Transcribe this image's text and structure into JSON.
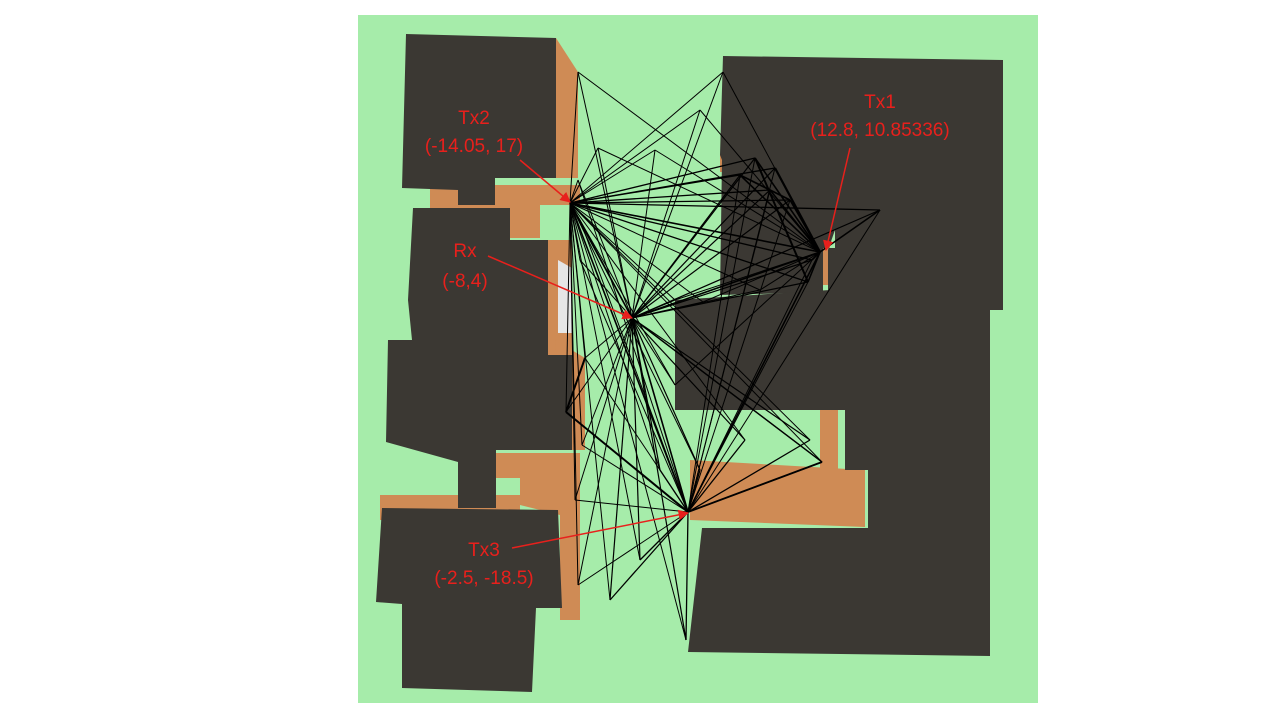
{
  "colors": {
    "background": "#ffffff",
    "ground": "#a6ecaa",
    "building_roof": "#3b3833",
    "building_wall": "#cf8b55",
    "ray": "#000000",
    "annotation": "#e8201c",
    "rx_device": "#e6e6e6"
  },
  "labels": {
    "tx1": {
      "name": "Tx1",
      "coords": "(12.8, 10.85336)"
    },
    "tx2": {
      "name": "Tx2",
      "coords": "(-14.05, 17)"
    },
    "rx": {
      "name": "Rx",
      "coords": "(-8,4)"
    },
    "tx3": {
      "name": "Tx3",
      "coords": "(-2.5, -18.5)"
    }
  }
}
